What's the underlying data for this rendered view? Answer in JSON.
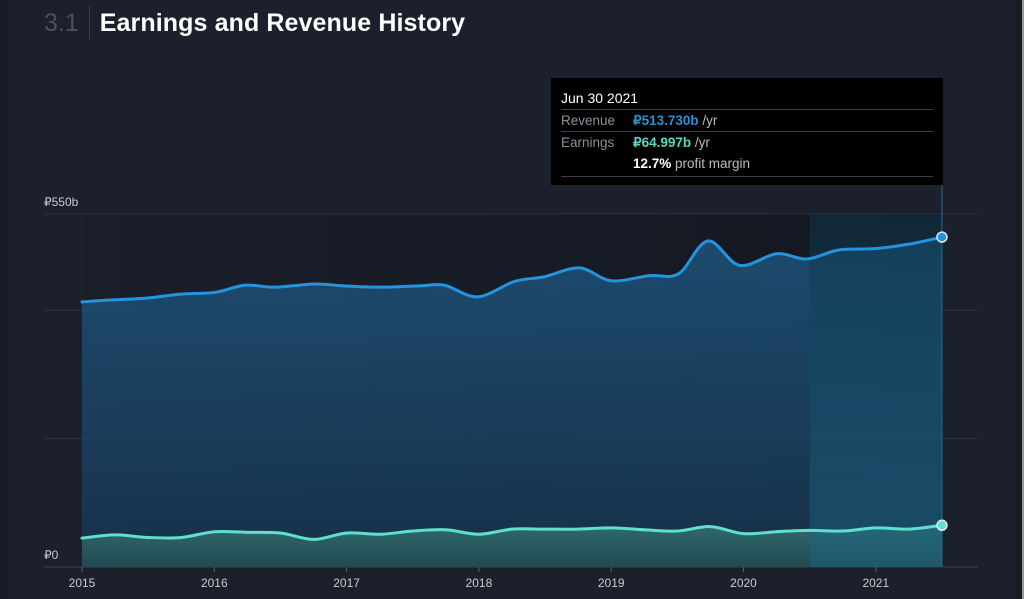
{
  "header": {
    "section_number": "3.1",
    "title": "Earnings and Revenue History"
  },
  "tooltip": {
    "date": "Jun 30 2021",
    "revenue_label": "Revenue",
    "revenue_value": "₽513.730b",
    "revenue_unit": " /yr",
    "earnings_label": "Earnings",
    "earnings_value": "₽64.997b",
    "earnings_unit": " /yr",
    "margin_value": "12.7%",
    "margin_text": " profit margin"
  },
  "colors": {
    "revenue": "#2394e0",
    "earnings": "#5ee0cc",
    "background": "#1b202c",
    "highlight": "#0f3a52"
  },
  "chart_data": {
    "type": "area",
    "title": "Earnings and Revenue History",
    "xlabel": "",
    "ylabel": "",
    "ylim": [
      0,
      550
    ],
    "xlim": [
      2015.0,
      2021.75
    ],
    "y_ticks": [
      {
        "value": 550,
        "label": "₽550b"
      },
      {
        "value": 0,
        "label": "₽0"
      }
    ],
    "y_gridlines": [
      0,
      200,
      400,
      550
    ],
    "x_ticks": [
      "2015",
      "2016",
      "2017",
      "2018",
      "2019",
      "2020",
      "2021"
    ],
    "highlight_range": [
      2020.5,
      2021.5
    ],
    "grid": true,
    "legend": "none",
    "series": [
      {
        "name": "Revenue",
        "unit": "₽ billion /yr",
        "x": [
          2015.0,
          2015.21,
          2015.49,
          2015.74,
          2016.01,
          2016.23,
          2016.46,
          2016.76,
          2016.98,
          2017.25,
          2017.55,
          2017.74,
          2017.99,
          2018.27,
          2018.49,
          2018.76,
          2019.0,
          2019.29,
          2019.51,
          2019.73,
          2019.97,
          2020.25,
          2020.48,
          2020.72,
          2020.99,
          2021.25,
          2021.5
        ],
        "values": [
          413,
          416,
          419,
          425,
          428,
          439,
          436,
          441,
          438,
          436,
          438,
          439,
          421,
          445,
          452,
          466,
          446,
          454,
          457,
          508,
          470,
          488,
          480,
          494,
          496,
          503,
          514
        ]
      },
      {
        "name": "Earnings",
        "unit": "₽ billion /yr",
        "x": [
          2015.0,
          2015.25,
          2015.5,
          2015.75,
          2016.0,
          2016.25,
          2016.5,
          2016.75,
          2017.0,
          2017.25,
          2017.5,
          2017.75,
          2018.0,
          2018.25,
          2018.5,
          2018.75,
          2019.0,
          2019.25,
          2019.5,
          2019.75,
          2020.0,
          2020.25,
          2020.5,
          2020.75,
          2021.0,
          2021.25,
          2021.5
        ],
        "values": [
          45,
          50,
          46,
          46,
          55,
          54,
          53,
          43,
          53,
          51,
          56,
          58,
          51,
          59,
          59,
          59,
          61,
          58,
          56,
          63,
          52,
          55,
          57,
          56,
          61,
          59,
          65
        ]
      }
    ],
    "tooltip_point": {
      "date": "Jun 30 2021",
      "revenue": 513.73,
      "earnings": 64.997,
      "profit_margin_pct": 12.7
    }
  }
}
